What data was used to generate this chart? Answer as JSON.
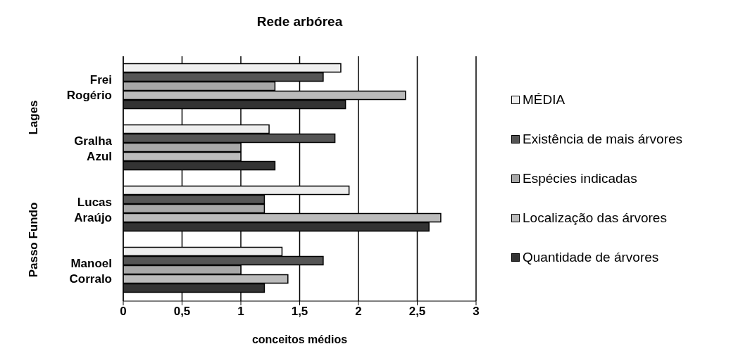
{
  "chart_data": {
    "type": "bar",
    "orientation": "horizontal",
    "title": "Rede arbórea",
    "xlabel": "conceitos médios",
    "categories": [
      "Frei Rogério",
      "Gralha Azul",
      "Lucas Araújo",
      "Manoel Corralo"
    ],
    "series": [
      {
        "name": "MÉDIA",
        "color": "#eeeeee",
        "values": [
          1.85,
          1.24,
          1.92,
          1.35
        ]
      },
      {
        "name": "Existência de mais árvores",
        "color": "#555555",
        "values": [
          1.7,
          1.8,
          1.2,
          1.7
        ]
      },
      {
        "name": "Espécies indicadas",
        "color": "#a8a8a8",
        "values": [
          1.29,
          1.0,
          1.2,
          1.0
        ]
      },
      {
        "name": "Localização das árvores",
        "color": "#bbbbbb",
        "values": [
          2.4,
          1.0,
          2.7,
          1.4
        ]
      },
      {
        "name": "Quantidade de árvores",
        "color": "#333333",
        "values": [
          1.89,
          1.29,
          2.6,
          1.2
        ]
      }
    ],
    "annotations": [
      "Lages",
      "Passo Fundo"
    ],
    "xlim": [
      0,
      3
    ],
    "xticks": [
      0,
      {
        "value": 0.5,
        "label": "0,5"
      },
      1,
      {
        "value": 1.5,
        "label": "1,5"
      },
      2,
      {
        "value": 2.5,
        "label": "2,5"
      },
      3
    ],
    "grid": "x",
    "legend": "right"
  }
}
